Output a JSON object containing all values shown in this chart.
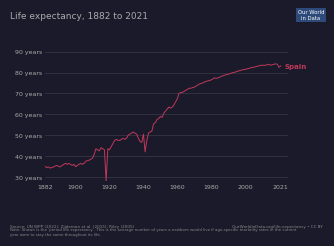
{
  "title": "Life expectancy, 1882 to 2021",
  "title_fontsize": 6.5,
  "line_color": "#C0395A",
  "label_color": "#C0395A",
  "country_label": "Spain",
  "bg_color": "#1a1a2a",
  "plot_bg_color": "#1a1a2a",
  "grid_color": "#3a3a4a",
  "text_color": "#aaaaaa",
  "yticks": [
    30,
    40,
    50,
    60,
    70,
    80,
    90
  ],
  "ytick_labels": [
    "30 years",
    "40 years",
    "50 years",
    "60 years",
    "70 years",
    "80 years",
    "90 years"
  ],
  "xtick_vals": [
    1882,
    1900,
    1920,
    1940,
    1960,
    1980,
    2000,
    2021
  ],
  "xlim": [
    1882,
    2025
  ],
  "ylim": [
    28,
    93
  ],
  "owid_box_color": "#2d4a7a",
  "footer_left": "Source: UN WPP (2022); Zijdeman et al. (2015); Riley (2005)    Note: Shown is the 'period life expectancy'. This is the average number of years a newborn would live if age-specific mortality rates in the current year were to stay the same throughout its life.",
  "footer_right": "OurWorldInData.org/life-expectancy • CC BY",
  "years": [
    1882,
    1883,
    1884,
    1885,
    1886,
    1887,
    1888,
    1889,
    1890,
    1891,
    1892,
    1893,
    1894,
    1895,
    1896,
    1897,
    1898,
    1899,
    1900,
    1901,
    1902,
    1903,
    1904,
    1905,
    1906,
    1907,
    1908,
    1909,
    1910,
    1911,
    1912,
    1913,
    1914,
    1915,
    1916,
    1917,
    1918,
    1919,
    1920,
    1921,
    1922,
    1923,
    1924,
    1925,
    1926,
    1927,
    1928,
    1929,
    1930,
    1931,
    1932,
    1933,
    1934,
    1935,
    1936,
    1937,
    1938,
    1939,
    1940,
    1941,
    1942,
    1943,
    1944,
    1945,
    1946,
    1947,
    1948,
    1949,
    1950,
    1951,
    1952,
    1953,
    1954,
    1955,
    1956,
    1957,
    1958,
    1959,
    1960,
    1961,
    1962,
    1963,
    1964,
    1965,
    1966,
    1967,
    1968,
    1969,
    1970,
    1971,
    1972,
    1973,
    1974,
    1975,
    1976,
    1977,
    1978,
    1979,
    1980,
    1981,
    1982,
    1983,
    1984,
    1985,
    1986,
    1987,
    1988,
    1989,
    1990,
    1991,
    1992,
    1993,
    1994,
    1995,
    1996,
    1997,
    1998,
    1999,
    2000,
    2001,
    2002,
    2003,
    2004,
    2005,
    2006,
    2007,
    2008,
    2009,
    2010,
    2011,
    2012,
    2013,
    2014,
    2015,
    2016,
    2017,
    2018,
    2019,
    2020,
    2021
  ],
  "life_exp": [
    35.0,
    34.5,
    34.8,
    34.2,
    34.5,
    34.8,
    35.2,
    35.5,
    35.0,
    34.8,
    35.5,
    36.0,
    36.5,
    36.0,
    36.5,
    36.0,
    35.5,
    36.0,
    34.9,
    35.5,
    36.0,
    36.5,
    36.0,
    36.5,
    37.5,
    37.8,
    38.0,
    38.5,
    39.0,
    40.9,
    43.5,
    43.0,
    42.5,
    44.0,
    43.5,
    43.0,
    28.0,
    43.5,
    43.0,
    44.5,
    46.0,
    47.5,
    48.0,
    47.5,
    47.5,
    48.0,
    48.5,
    48.0,
    48.5,
    50.0,
    50.5,
    51.0,
    51.5,
    51.0,
    50.5,
    48.5,
    47.0,
    46.5,
    50.5,
    42.0,
    47.5,
    51.0,
    51.5,
    52.0,
    55.5,
    56.0,
    57.5,
    58.0,
    59.0,
    58.5,
    60.5,
    61.5,
    62.5,
    63.5,
    63.0,
    63.5,
    64.5,
    66.0,
    67.5,
    70.0,
    70.5,
    70.5,
    71.0,
    71.5,
    72.0,
    72.5,
    72.5,
    72.8,
    73.0,
    73.5,
    74.0,
    74.5,
    74.8,
    75.0,
    75.5,
    75.8,
    76.0,
    76.2,
    76.5,
    77.0,
    77.5,
    77.2,
    77.5,
    77.8,
    78.2,
    78.5,
    78.8,
    79.0,
    79.2,
    79.5,
    79.8,
    80.0,
    80.2,
    80.5,
    80.8,
    81.0,
    81.2,
    81.5,
    81.5,
    81.8,
    82.0,
    82.2,
    82.5,
    82.5,
    82.8,
    83.0,
    83.2,
    83.5,
    83.5,
    83.5,
    83.5,
    83.8,
    84.0,
    83.5,
    83.8,
    84.0,
    84.2,
    84.0,
    82.5,
    83.2
  ]
}
